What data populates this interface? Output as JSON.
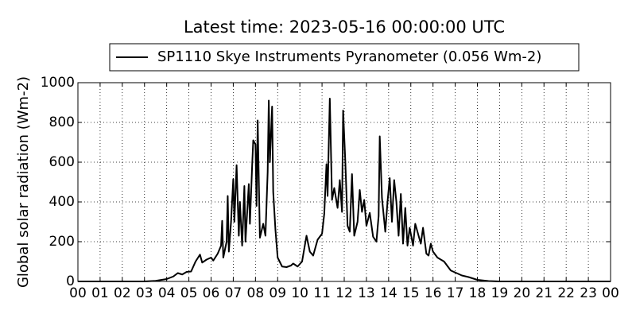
{
  "chart_data": {
    "type": "line",
    "title": "Latest time: 2023-05-16 00:00:00 UTC",
    "y_label": "Global solar radiation (Wm-2)",
    "series": [
      {
        "name": "SP1110 Skye Instruments Pyranometer (0.056 Wm-2)",
        "color": "#000000",
        "x": [
          0,
          3,
          3.5,
          4,
          4.3,
          4.5,
          4.7,
          4.9,
          5.1,
          5.3,
          5.5,
          5.6,
          5.8,
          6,
          6.1,
          6.3,
          6.45,
          6.5,
          6.55,
          6.7,
          6.75,
          6.8,
          6.9,
          7,
          7.05,
          7.15,
          7.25,
          7.3,
          7.4,
          7.5,
          7.55,
          7.7,
          7.75,
          7.85,
          7.9,
          8,
          8.05,
          8.1,
          8.2,
          8.35,
          8.45,
          8.55,
          8.6,
          8.65,
          8.75,
          8.8,
          8.9,
          9,
          9.2,
          9.4,
          9.6,
          9.7,
          9.9,
          10.1,
          10.3,
          10.45,
          10.6,
          10.8,
          11,
          11.1,
          11.2,
          11.25,
          11.35,
          11.45,
          11.55,
          11.7,
          11.8,
          11.9,
          11.95,
          12.05,
          12.15,
          12.25,
          12.35,
          12.45,
          12.6,
          12.7,
          12.8,
          12.9,
          13,
          13.15,
          13.3,
          13.45,
          13.55,
          13.6,
          13.7,
          13.85,
          13.95,
          14.05,
          14.15,
          14.25,
          14.35,
          14.45,
          14.55,
          14.65,
          14.75,
          14.85,
          14.95,
          15.1,
          15.2,
          15.35,
          15.45,
          15.55,
          15.7,
          15.8,
          15.9,
          16,
          16.2,
          16.5,
          16.8,
          17,
          17.3,
          17.6,
          18,
          18.5,
          19,
          24
        ],
        "values": [
          0,
          0,
          3,
          12,
          25,
          42,
          35,
          48,
          50,
          100,
          135,
          95,
          110,
          120,
          105,
          140,
          180,
          305,
          120,
          200,
          430,
          150,
          300,
          515,
          300,
          585,
          230,
          400,
          180,
          480,
          200,
          490,
          290,
          580,
          710,
          690,
          380,
          810,
          220,
          290,
          230,
          550,
          910,
          600,
          880,
          450,
          260,
          120,
          75,
          72,
          80,
          90,
          75,
          100,
          230,
          150,
          130,
          210,
          240,
          340,
          590,
          430,
          920,
          410,
          470,
          370,
          510,
          350,
          860,
          600,
          280,
          250,
          540,
          230,
          300,
          460,
          350,
          410,
          280,
          345,
          225,
          200,
          330,
          730,
          420,
          250,
          400,
          520,
          300,
          510,
          400,
          230,
          440,
          190,
          370,
          180,
          270,
          180,
          290,
          230,
          190,
          270,
          140,
          130,
          190,
          150,
          120,
          100,
          55,
          45,
          30,
          22,
          8,
          2,
          0,
          0
        ]
      }
    ],
    "xlim": [
      0,
      24
    ],
    "xticks": [
      {
        "value": 0,
        "label": "00"
      },
      {
        "value": 1,
        "label": "01"
      },
      {
        "value": 2,
        "label": "02"
      },
      {
        "value": 3,
        "label": "03"
      },
      {
        "value": 4,
        "label": "04"
      },
      {
        "value": 5,
        "label": "05"
      },
      {
        "value": 6,
        "label": "06"
      },
      {
        "value": 7,
        "label": "07"
      },
      {
        "value": 8,
        "label": "08"
      },
      {
        "value": 9,
        "label": "09"
      },
      {
        "value": 10,
        "label": "10"
      },
      {
        "value": 11,
        "label": "11"
      },
      {
        "value": 12,
        "label": "12"
      },
      {
        "value": 13,
        "label": "13"
      },
      {
        "value": 14,
        "label": "14"
      },
      {
        "value": 15,
        "label": "15"
      },
      {
        "value": 16,
        "label": "16"
      },
      {
        "value": 17,
        "label": "17"
      },
      {
        "value": 18,
        "label": "18"
      },
      {
        "value": 19,
        "label": "19"
      },
      {
        "value": 20,
        "label": "20"
      },
      {
        "value": 21,
        "label": "21"
      },
      {
        "value": 22,
        "label": "22"
      },
      {
        "value": 23,
        "label": "23"
      },
      {
        "value": 24,
        "label": "00"
      }
    ],
    "ylim": [
      0,
      1000
    ],
    "yticks": [
      0,
      200,
      400,
      600,
      800,
      1000
    ],
    "grid": true
  }
}
